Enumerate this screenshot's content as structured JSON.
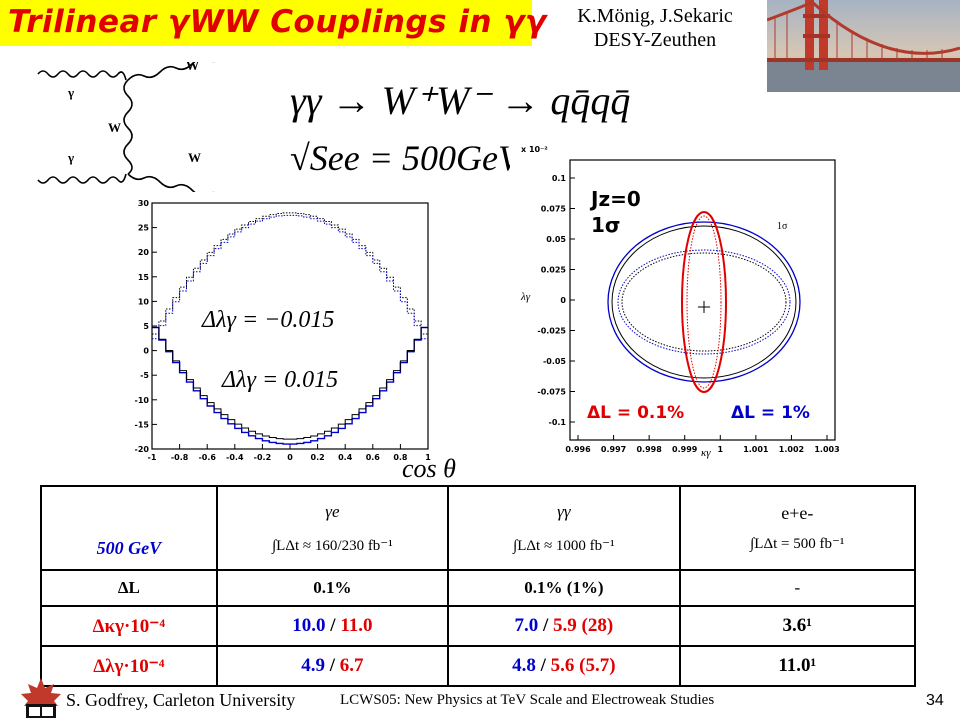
{
  "slide": {
    "title": "Trilinear γWW Couplings in γγ",
    "authors_line1": "K.Mönig, J.Sekaric",
    "authors_line2": "DESY-Zeuthen"
  },
  "equations": {
    "process": "γγ → W⁺W⁻ → qq̄qq̄",
    "energy": "√See = 500GeV"
  },
  "feynman": {
    "labels": [
      "γ",
      "γ",
      "W",
      "W",
      "W"
    ]
  },
  "plot_left": {
    "xlabel": "cos θ",
    "x_ticks": [
      "-1",
      "-0.8",
      "-0.6",
      "-0.4",
      "-0.2",
      "0",
      "0.2",
      "0.4",
      "0.6",
      "0.8",
      "1"
    ],
    "y_ticks": [
      "30",
      "25",
      "20",
      "15",
      "10",
      "5",
      "0",
      "-5",
      "-10",
      "-15",
      "-20"
    ],
    "annotation_top": "Δλγ = −0.015",
    "annotation_bottom": "Δλγ = 0.015"
  },
  "plot_right": {
    "scale_note": "x 10⁻²",
    "ylabel": "λγ",
    "xlabel": "κγ",
    "x_ticks": [
      "0.996",
      "0.997",
      "0.998",
      "0.999",
      "1",
      "1.001",
      "1.002",
      "1.003"
    ],
    "y_ticks": [
      "0.1",
      "0.075",
      "0.05",
      "0.025",
      "0",
      "-0.025",
      "-0.05",
      "-0.075",
      "-0.1"
    ],
    "jz": "Jz=0",
    "sigma": "1σ",
    "sigma_small": "1σ",
    "dl_red": "ΔL = 0.1%",
    "dl_blue": "ΔL = 1%",
    "colors": {
      "red": "#e00000",
      "blue": "#0000cc"
    }
  },
  "table": {
    "corner": "500 GeV",
    "col1_sym": "γe",
    "col1_lum": "∫LΔt ≈ 160/230 fb⁻¹",
    "col2_sym": "γγ",
    "col2_lum": "∫LΔt ≈ 1000 fb⁻¹",
    "col3_sym": "e+e-",
    "col3_lum": "∫LΔt = 500 fb⁻¹",
    "row1_label": "ΔL",
    "row1_c1": "0.1%",
    "row1_c2": "0.1% (1%)",
    "row1_c3": "-",
    "row2_label": "Δκγ·10⁻⁴",
    "row2_c1_a": "10.0",
    "row2_c1_sep": " / ",
    "row2_c1_b": "11.0",
    "row2_c2_a": "7.0",
    "row2_c2_sep": " / ",
    "row2_c2_b": "5.9 (28)",
    "row2_c3": "3.6¹",
    "row3_label": "Δλγ·10⁻⁴",
    "row3_c1_a": "4.9",
    "row3_c1_sep": " / ",
    "row3_c1_b": "6.7",
    "row3_c2_a": "4.8",
    "row3_c2_sep": " / ",
    "row3_c2_b": "5.6 (5.7)",
    "row3_c3": "11.0¹"
  },
  "footer": {
    "left": "S. Godfrey, Carleton University",
    "mid": "LCWS05: New Physics at TeV Scale and Electroweak Studies",
    "page": "34"
  }
}
